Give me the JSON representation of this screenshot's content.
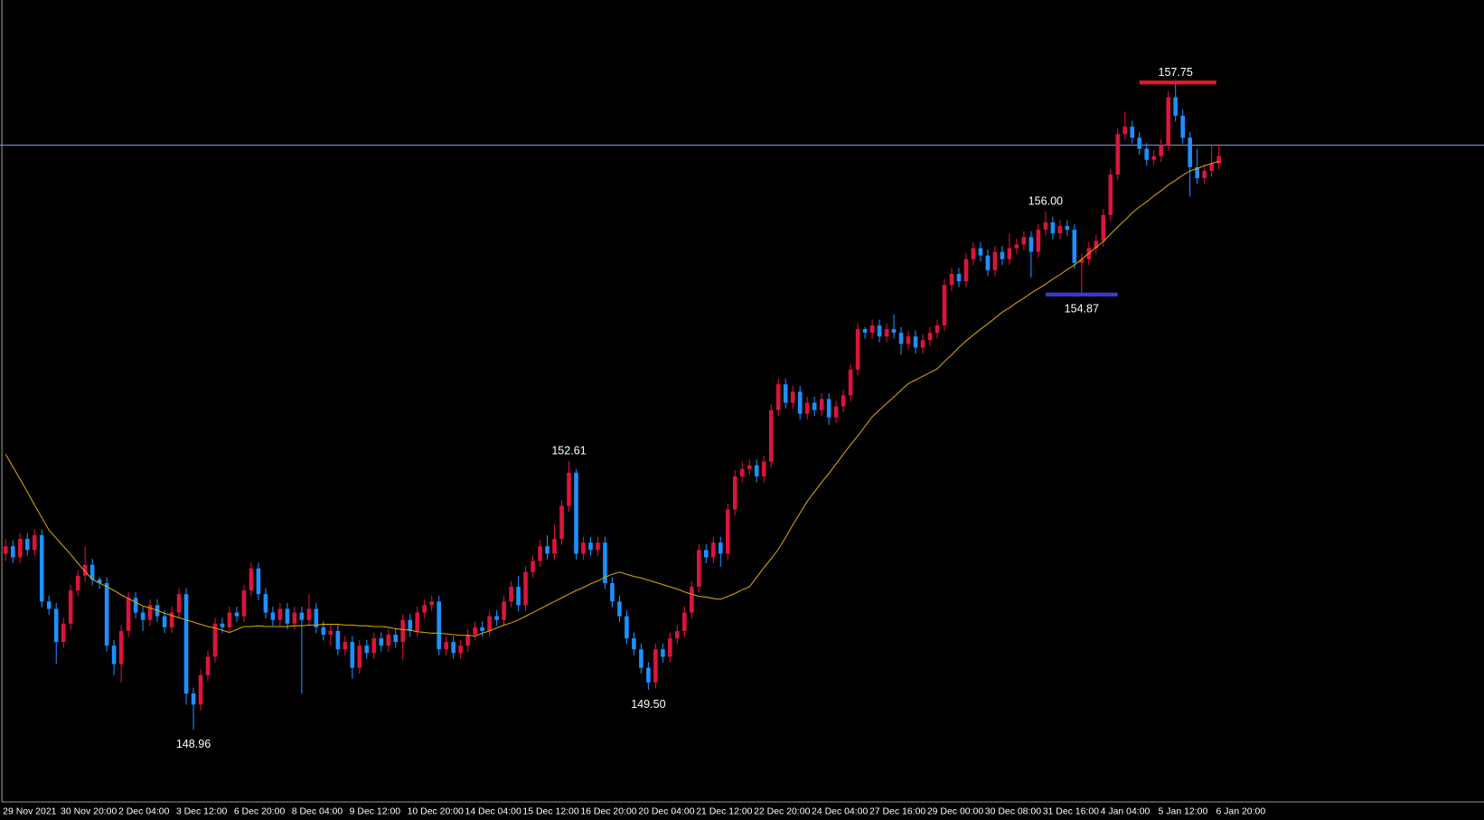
{
  "chart_data": {
    "type": "candlestick",
    "categories": [
      "29 Nov 2021",
      null,
      null,
      null,
      null,
      null,
      null,
      null,
      "30 Nov 20:00",
      null,
      null,
      null,
      null,
      null,
      null,
      null,
      "2 Dec 04:00",
      null,
      null,
      null,
      null,
      null,
      null,
      null,
      "3 Dec 12:00",
      null,
      null,
      null,
      null,
      null,
      null,
      null,
      "6 Dec 20:00",
      null,
      null,
      null,
      null,
      null,
      null,
      null,
      "8 Dec 04:00",
      null,
      null,
      null,
      null,
      null,
      null,
      null,
      "9 Dec 12:00",
      null,
      null,
      null,
      null,
      null,
      null,
      null,
      "10 Dec 20:00",
      null,
      null,
      null,
      null,
      null,
      null,
      null,
      "14 Dec 04:00",
      null,
      null,
      null,
      null,
      null,
      null,
      null,
      "15 Dec 12:00",
      null,
      null,
      null,
      null,
      null,
      null,
      null,
      "16 Dec 20:00",
      null,
      null,
      null,
      null,
      null,
      null,
      null,
      "20 Dec 04:00",
      null,
      null,
      null,
      null,
      null,
      null,
      null,
      "21 Dec 12:00",
      null,
      null,
      null,
      null,
      null,
      null,
      null,
      "22 Dec 20:00",
      null,
      null,
      null,
      null,
      null,
      null,
      null,
      "24 Dec 04:00",
      null,
      null,
      null,
      null,
      null,
      null,
      null,
      "27 Dec 16:00",
      null,
      null,
      null,
      null,
      null,
      null,
      null,
      "29 Dec 00:00",
      null,
      null,
      null,
      null,
      null,
      null,
      null,
      "30 Dec 08:00",
      null,
      null,
      null,
      null,
      null,
      null,
      null,
      "31 Dec 16:00",
      null,
      null,
      null,
      null,
      null,
      null,
      null,
      "4 Jan 04:00",
      null,
      null,
      null,
      null,
      null,
      null,
      null,
      "5 Jan 12:00",
      null,
      null,
      null,
      null,
      null,
      null,
      null,
      "6 Jan 20:00"
    ],
    "open": [
      151.35,
      151.45,
      151.3,
      151.55,
      151.4,
      151.6,
      150.7,
      150.6,
      150.15,
      150.4,
      150.85,
      151.05,
      151.2,
      151.0,
      150.95,
      150.1,
      149.85,
      150.3,
      150.75,
      150.55,
      150.45,
      150.65,
      150.5,
      150.35,
      150.55,
      150.8,
      149.45,
      149.3,
      149.7,
      149.95,
      150.4,
      150.35,
      150.55,
      150.5,
      150.85,
      151.15,
      150.8,
      150.55,
      150.45,
      150.6,
      150.4,
      150.55,
      150.45,
      150.6,
      150.35,
      150.25,
      150.3,
      150.05,
      150.15,
      149.8,
      150.1,
      150.0,
      150.2,
      150.1,
      150.25,
      150.15,
      150.45,
      150.3,
      150.55,
      150.65,
      150.7,
      150.05,
      150.15,
      150.0,
      150.1,
      150.25,
      150.35,
      150.3,
      150.5,
      150.45,
      150.7,
      150.9,
      150.65,
      151.1,
      151.25,
      151.45,
      151.35,
      151.55,
      152.0,
      152.45,
      151.35,
      151.5,
      151.4,
      151.5,
      150.95,
      150.7,
      150.5,
      150.2,
      150.05,
      149.8,
      149.6,
      150.05,
      149.95,
      150.2,
      150.3,
      150.55,
      150.9,
      151.4,
      151.3,
      151.5,
      151.35,
      151.95,
      152.4,
      152.5,
      152.55,
      152.4,
      152.6,
      153.3,
      153.65,
      153.4,
      153.55,
      153.25,
      153.4,
      153.3,
      153.45,
      153.2,
      153.35,
      153.5,
      153.85,
      154.4,
      154.35,
      154.45,
      154.3,
      154.4,
      154.35,
      154.2,
      154.3,
      154.15,
      154.25,
      154.35,
      154.45,
      155.0,
      155.15,
      155.05,
      155.35,
      155.5,
      155.4,
      155.2,
      155.45,
      155.35,
      155.5,
      155.55,
      155.65,
      155.45,
      155.75,
      155.85,
      155.7,
      155.8,
      155.75,
      155.3,
      155.35,
      155.5,
      155.6,
      155.95,
      156.5,
      157.05,
      157.15,
      157.0,
      156.85,
      156.7,
      156.75,
      156.9,
      157.55,
      157.3,
      157.0,
      156.6,
      156.45,
      156.55,
      156.65
    ],
    "high": [
      151.55,
      151.53,
      151.63,
      151.63,
      151.68,
      151.68,
      150.78,
      150.68,
      150.48,
      150.93,
      151.13,
      151.45,
      151.28,
      151.03,
      151.03,
      150.18,
      150.38,
      150.83,
      150.83,
      150.63,
      150.73,
      150.73,
      150.58,
      150.63,
      150.88,
      150.88,
      149.53,
      149.78,
      150.03,
      150.48,
      150.48,
      150.63,
      150.63,
      150.93,
      151.23,
      151.23,
      150.88,
      150.63,
      150.68,
      150.68,
      150.63,
      150.63,
      150.8,
      150.68,
      150.43,
      150.38,
      150.38,
      150.23,
      150.23,
      150.18,
      150.18,
      150.28,
      150.28,
      150.33,
      150.33,
      150.53,
      150.53,
      150.63,
      150.73,
      150.78,
      150.78,
      150.23,
      150.23,
      150.18,
      150.33,
      150.43,
      150.43,
      150.58,
      150.58,
      150.78,
      150.98,
      151.05,
      151.18,
      151.33,
      151.53,
      151.6,
      151.75,
      152.08,
      152.61,
      152.5,
      151.58,
      151.58,
      151.58,
      151.58,
      151.03,
      150.78,
      150.58,
      150.28,
      150.13,
      149.88,
      150.13,
      150.13,
      150.28,
      150.38,
      150.63,
      150.98,
      151.48,
      151.48,
      151.58,
      151.58,
      152.03,
      152.48,
      152.6,
      152.63,
      152.63,
      152.68,
      153.38,
      153.73,
      153.73,
      153.63,
      153.63,
      153.48,
      153.48,
      153.53,
      153.53,
      153.43,
      153.58,
      153.93,
      154.48,
      154.43,
      154.53,
      154.53,
      154.48,
      154.6,
      154.43,
      154.38,
      154.38,
      154.33,
      154.43,
      154.53,
      155.08,
      155.23,
      155.23,
      155.43,
      155.58,
      155.58,
      155.48,
      155.53,
      155.53,
      155.7,
      155.63,
      155.73,
      155.73,
      155.83,
      156.0,
      155.93,
      155.88,
      155.88,
      155.83,
      155.43,
      155.58,
      155.68,
      156.03,
      156.58,
      157.13,
      157.35,
      157.23,
      157.08,
      156.93,
      156.83,
      156.98,
      157.63,
      157.75,
      157.38,
      157.08,
      156.85,
      156.63,
      156.9,
      156.9
    ],
    "low": [
      151.25,
      151.22,
      151.22,
      151.32,
      151.32,
      150.62,
      150.52,
      149.85,
      150.07,
      150.32,
      150.77,
      150.97,
      150.92,
      150.87,
      150.02,
      149.7,
      149.6,
      150.22,
      150.47,
      150.3,
      150.37,
      150.42,
      150.27,
      150.27,
      150.47,
      149.3,
      148.96,
      149.22,
      149.62,
      149.87,
      150.27,
      150.27,
      150.42,
      150.42,
      150.77,
      150.72,
      150.47,
      150.37,
      150.37,
      150.32,
      150.32,
      149.45,
      150.37,
      150.27,
      150.17,
      150.1,
      149.97,
      149.97,
      149.65,
      149.72,
      149.92,
      149.92,
      150.02,
      150.02,
      150.07,
      149.9,
      150.22,
      150.22,
      150.47,
      150.57,
      149.97,
      149.97,
      149.92,
      149.92,
      150.02,
      150.17,
      150.22,
      150.22,
      150.37,
      150.37,
      150.62,
      150.57,
      150.57,
      151.02,
      151.17,
      151.27,
      151.27,
      151.47,
      151.92,
      151.27,
      151.27,
      151.32,
      151.32,
      150.87,
      150.62,
      150.42,
      150.12,
      149.97,
      149.72,
      149.5,
      149.52,
      149.87,
      149.87,
      150.12,
      150.22,
      150.47,
      150.82,
      151.22,
      151.22,
      151.17,
      151.27,
      151.87,
      152.32,
      152.42,
      152.32,
      152.32,
      152.52,
      153.22,
      153.32,
      153.32,
      153.17,
      153.17,
      153.22,
      153.22,
      153.1,
      153.12,
      153.27,
      153.42,
      153.77,
      154.27,
      154.27,
      154.22,
      154.22,
      154.27,
      154.05,
      154.12,
      154.07,
      154.07,
      154.17,
      154.27,
      154.37,
      154.92,
      154.97,
      154.97,
      155.27,
      155.32,
      155.12,
      155.12,
      155.27,
      155.27,
      155.42,
      155.47,
      155.1,
      155.37,
      155.67,
      155.62,
      155.62,
      155.67,
      155.22,
      154.87,
      155.27,
      155.42,
      155.52,
      155.87,
      156.42,
      156.97,
      156.92,
      156.77,
      156.62,
      156.62,
      156.67,
      156.82,
      157.22,
      156.92,
      156.2,
      156.37,
      156.37,
      156.47,
      156.57
    ],
    "close": [
      151.45,
      151.3,
      151.55,
      151.4,
      151.6,
      150.7,
      150.6,
      150.15,
      150.4,
      150.85,
      151.05,
      151.2,
      151.0,
      150.95,
      150.1,
      149.85,
      150.3,
      150.75,
      150.55,
      150.45,
      150.65,
      150.5,
      150.35,
      150.55,
      150.8,
      149.45,
      149.3,
      149.7,
      149.95,
      150.4,
      150.35,
      150.55,
      150.5,
      150.85,
      151.15,
      150.8,
      150.55,
      150.45,
      150.6,
      150.4,
      150.55,
      150.45,
      150.6,
      150.35,
      150.25,
      150.3,
      150.05,
      150.15,
      149.8,
      150.1,
      150.0,
      150.2,
      150.1,
      150.25,
      150.15,
      150.45,
      150.3,
      150.55,
      150.65,
      150.7,
      150.05,
      150.15,
      150.0,
      150.1,
      150.25,
      150.35,
      150.3,
      150.5,
      150.45,
      150.7,
      150.9,
      150.65,
      151.1,
      151.25,
      151.45,
      151.35,
      151.55,
      152.0,
      152.45,
      151.35,
      151.5,
      151.4,
      151.5,
      150.95,
      150.7,
      150.5,
      150.2,
      150.05,
      149.8,
      149.6,
      150.05,
      149.95,
      150.2,
      150.3,
      150.55,
      150.9,
      151.4,
      151.3,
      151.5,
      151.35,
      151.95,
      152.4,
      152.5,
      152.55,
      152.4,
      152.6,
      153.3,
      153.65,
      153.4,
      153.55,
      153.25,
      153.4,
      153.3,
      153.45,
      153.2,
      153.35,
      153.5,
      153.85,
      154.4,
      154.35,
      154.45,
      154.3,
      154.4,
      154.35,
      154.2,
      154.3,
      154.15,
      154.25,
      154.35,
      154.45,
      155.0,
      155.15,
      155.05,
      155.35,
      155.5,
      155.4,
      155.2,
      155.45,
      155.35,
      155.5,
      155.55,
      155.65,
      155.45,
      155.75,
      155.85,
      155.7,
      155.8,
      155.75,
      155.3,
      155.35,
      155.5,
      155.6,
      155.95,
      156.5,
      157.05,
      157.15,
      157.0,
      156.85,
      156.7,
      156.75,
      156.9,
      157.55,
      157.3,
      157.0,
      156.6,
      156.45,
      156.55,
      156.65,
      156.75
    ],
    "high_labels": [
      null,
      null,
      null,
      null,
      null,
      null,
      null,
      null,
      null,
      null,
      null,
      null,
      null,
      null,
      null,
      null,
      null,
      null,
      null,
      null,
      null,
      null,
      null,
      null,
      null,
      null,
      null,
      null,
      null,
      null,
      null,
      null,
      null,
      null,
      null,
      null,
      null,
      null,
      null,
      null,
      null,
      null,
      null,
      null,
      null,
      null,
      null,
      null,
      null,
      null,
      null,
      null,
      null,
      null,
      null,
      null,
      null,
      null,
      null,
      null,
      null,
      null,
      null,
      null,
      null,
      null,
      null,
      null,
      null,
      null,
      null,
      null,
      null,
      null,
      null,
      null,
      null,
      null,
      "152.61",
      null,
      null,
      null,
      null,
      null,
      null,
      null,
      null,
      null,
      null,
      null,
      null,
      null,
      null,
      null,
      null,
      null,
      null,
      null,
      null,
      null,
      null,
      null,
      null,
      null,
      null,
      null,
      null,
      null,
      null,
      null,
      null,
      null,
      null,
      null,
      null,
      null,
      null,
      null,
      null,
      null,
      null,
      null,
      null,
      null,
      null,
      null,
      null,
      null,
      null,
      null,
      null,
      null,
      null,
      null,
      null,
      null,
      null,
      null,
      null,
      null,
      null,
      null,
      null,
      null,
      "156.00",
      null,
      null,
      null,
      null,
      null,
      null,
      null,
      null,
      null,
      null,
      null,
      null,
      null,
      null,
      null,
      null,
      null,
      "157.75",
      null,
      null,
      null,
      null,
      null,
      null
    ],
    "low_labels": [
      null,
      null,
      null,
      null,
      null,
      null,
      null,
      null,
      null,
      null,
      null,
      null,
      null,
      null,
      null,
      null,
      null,
      null,
      null,
      null,
      null,
      null,
      null,
      null,
      null,
      null,
      "148.96",
      null,
      null,
      null,
      null,
      null,
      null,
      null,
      null,
      null,
      null,
      null,
      null,
      null,
      null,
      null,
      null,
      null,
      null,
      null,
      null,
      null,
      null,
      null,
      null,
      null,
      null,
      null,
      null,
      null,
      null,
      null,
      null,
      null,
      null,
      null,
      null,
      null,
      null,
      null,
      null,
      null,
      null,
      null,
      null,
      null,
      null,
      null,
      null,
      null,
      null,
      null,
      null,
      null,
      null,
      null,
      null,
      null,
      null,
      null,
      null,
      null,
      null,
      "149.50",
      null,
      null,
      null,
      null,
      null,
      null,
      null,
      null,
      null,
      null,
      null,
      null,
      null,
      null,
      null,
      null,
      null,
      null,
      null,
      null,
      null,
      null,
      null,
      null,
      null,
      null,
      null,
      null,
      null,
      null,
      null,
      null,
      null,
      null,
      null,
      null,
      null,
      null,
      null,
      null,
      null,
      null,
      null,
      null,
      null,
      null,
      null,
      null,
      null,
      null,
      null,
      null,
      null,
      null,
      null,
      null,
      null,
      null,
      null,
      "154.87",
      null,
      null,
      null,
      null,
      null,
      null,
      null,
      null,
      null,
      null,
      null,
      null,
      null,
      null,
      null,
      null,
      null,
      null,
      null
    ],
    "up_color": "#dc143c",
    "down_color": "#1e90ff",
    "moving_average": {
      "color": "#d9a800",
      "values": [
        152.7,
        152.53,
        152.36,
        152.19,
        152.01,
        151.84,
        151.67,
        151.56,
        151.45,
        151.34,
        151.22,
        151.11,
        151.0,
        150.95,
        150.9,
        150.85,
        150.79,
        150.74,
        150.69,
        150.64,
        150.61,
        150.58,
        150.54,
        150.51,
        150.48,
        150.45,
        150.42,
        150.39,
        150.36,
        150.34,
        150.31,
        150.28,
        150.32,
        150.36,
        150.36,
        150.37,
        150.36,
        150.36,
        150.36,
        150.36,
        150.37,
        150.37,
        150.38,
        150.38,
        150.39,
        150.39,
        150.39,
        150.38,
        150.38,
        150.37,
        150.37,
        150.36,
        150.36,
        150.35,
        150.33,
        150.32,
        150.31,
        150.29,
        150.28,
        150.27,
        150.27,
        150.26,
        150.25,
        150.24,
        150.24,
        150.23,
        150.27,
        150.3,
        150.34,
        150.38,
        150.41,
        150.45,
        150.5,
        150.55,
        150.6,
        150.65,
        150.7,
        150.75,
        150.8,
        150.85,
        150.89,
        150.94,
        150.98,
        151.03,
        151.07,
        151.1,
        151.07,
        151.04,
        151.02,
        150.99,
        150.96,
        150.93,
        150.9,
        150.87,
        150.83,
        150.8,
        150.77,
        150.76,
        150.74,
        150.73,
        150.77,
        150.81,
        150.86,
        150.9,
        151.03,
        151.16,
        151.28,
        151.41,
        151.57,
        151.74,
        151.9,
        152.06,
        152.19,
        152.32,
        152.44,
        152.57,
        152.7,
        152.83,
        152.95,
        153.08,
        153.21,
        153.3,
        153.39,
        153.48,
        153.57,
        153.66,
        153.71,
        153.76,
        153.81,
        153.86,
        153.96,
        154.05,
        154.15,
        154.24,
        154.32,
        154.4,
        154.47,
        154.55,
        154.63,
        154.69,
        154.76,
        154.82,
        154.89,
        154.95,
        155.01,
        155.08,
        155.14,
        155.21,
        155.27,
        155.35,
        155.43,
        155.51,
        155.59,
        155.69,
        155.79,
        155.88,
        155.98,
        156.06,
        156.13,
        156.21,
        156.28,
        156.36,
        156.42,
        156.49,
        156.55,
        156.58,
        156.62,
        156.65,
        156.68
      ]
    },
    "hline": {
      "value": 156.9,
      "color": "#7c9cc4"
    },
    "last_high_color": "#e8192c",
    "last_low_color": "#3b3bd6",
    "ylim": [
      147.99,
      158.87
    ]
  }
}
